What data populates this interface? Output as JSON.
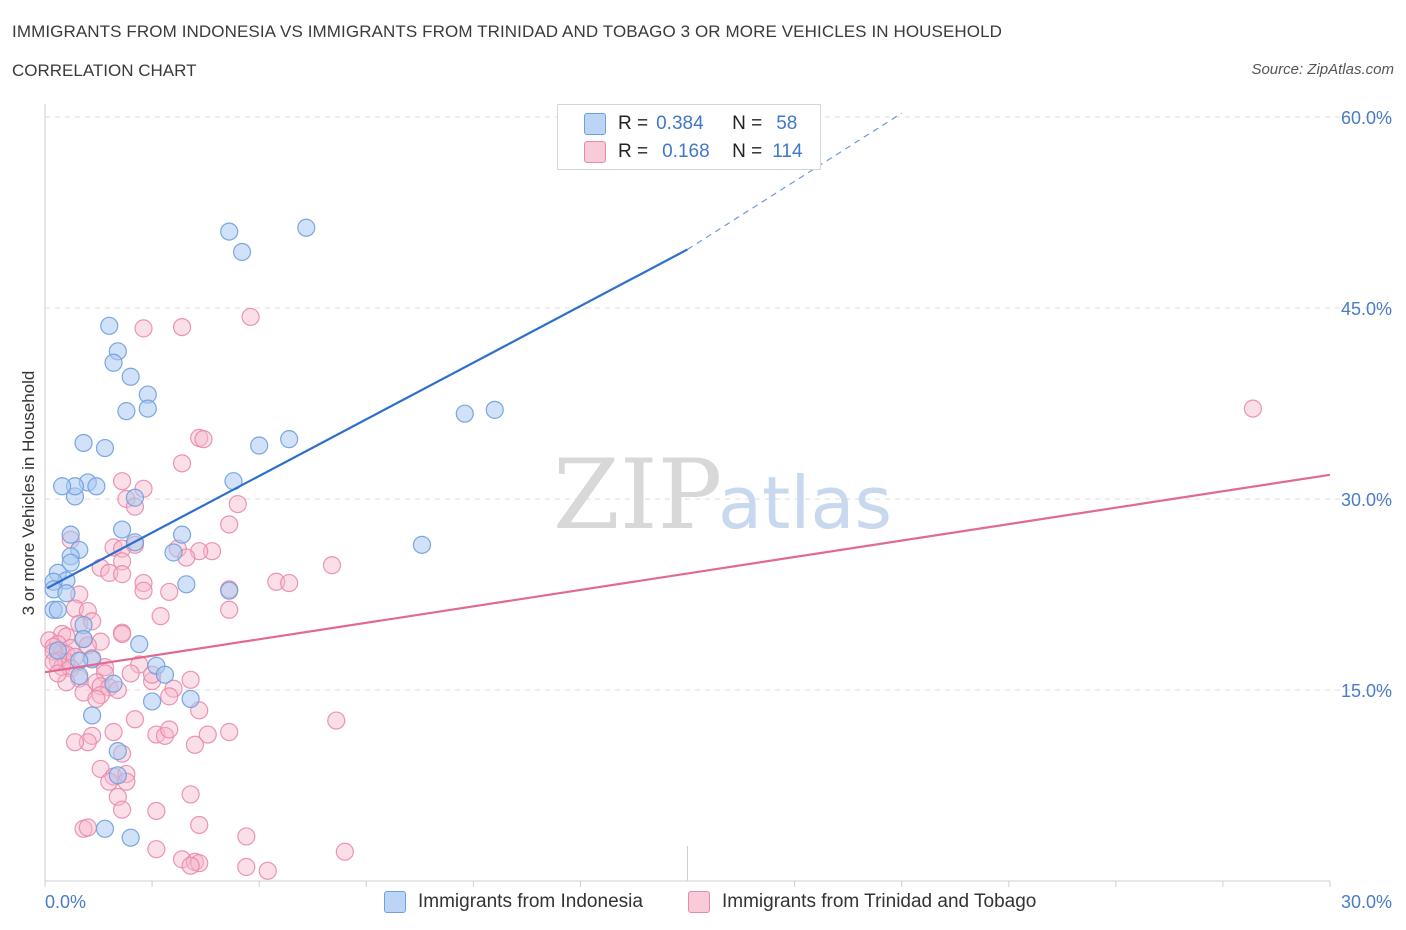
{
  "header": {
    "title": "IMMIGRANTS FROM INDONESIA VS IMMIGRANTS FROM TRINIDAD AND TOBAGO 3 OR MORE VEHICLES IN HOUSEHOLD",
    "subtitle": "CORRELATION CHART",
    "source": "Source: ZipAtlas.com"
  },
  "colors": {
    "blue_fill": "#a9c8f2",
    "blue_stroke": "#6f9fdc",
    "blue_line": "#2e6fcc",
    "pink_fill": "#f6b8cb",
    "pink_stroke": "#e98aa8",
    "pink_line": "#e06a92",
    "axis_text": "#4a7cc7",
    "grid": "#dcdcdc"
  },
  "legend": {
    "rows": [
      {
        "r_label": "R =",
        "r_value": "0.384",
        "n_label": "N =",
        "n_value": "58",
        "series": "blue"
      },
      {
        "r_label": "R =",
        "r_value": "0.168",
        "n_label": "N =",
        "n_value": "114",
        "series": "pink"
      }
    ]
  },
  "bottom_legend": {
    "items": [
      {
        "label": "Immigrants from Indonesia",
        "series": "blue"
      },
      {
        "label": "Immigrants from Trinidad and Tobago",
        "series": "pink"
      }
    ]
  },
  "watermark": {
    "zip": "ZIP",
    "atlas": "atlas"
  },
  "chart_data": {
    "type": "scatter",
    "title": "IMMIGRANTS FROM INDONESIA VS IMMIGRANTS FROM TRINIDAD AND TOBAGO 3 OR MORE VEHICLES IN HOUSEHOLD",
    "xlabel": "",
    "ylabel": "3 or more Vehicles in Household",
    "xlim": [
      0,
      30
    ],
    "ylim": [
      0,
      60
    ],
    "x_tick_labels": [
      "0.0%",
      "30.0%"
    ],
    "y_ticks": [
      15,
      30,
      45,
      60
    ],
    "y_tick_labels": [
      "15.0%",
      "30.0%",
      "45.0%",
      "60.0%"
    ],
    "grid": true,
    "series": [
      {
        "name": "Immigrants from Indonesia",
        "color": "blue",
        "R": 0.384,
        "N": 58,
        "trend": {
          "x0": 0.05,
          "y0": 23.0,
          "x1": 15.0,
          "y1": 49.6,
          "dash_to_x": 20.0,
          "dash_to_y": 60.3
        },
        "points": [
          [
            4.3,
            51.0
          ],
          [
            6.1,
            51.3
          ],
          [
            4.6,
            49.4
          ],
          [
            1.5,
            43.6
          ],
          [
            1.7,
            41.6
          ],
          [
            1.6,
            40.7
          ],
          [
            2.0,
            39.6
          ],
          [
            2.4,
            38.2
          ],
          [
            2.4,
            37.1
          ],
          [
            1.9,
            36.9
          ],
          [
            0.9,
            34.4
          ],
          [
            1.4,
            34.0
          ],
          [
            2.1,
            30.1
          ],
          [
            5.0,
            34.2
          ],
          [
            5.7,
            34.7
          ],
          [
            9.8,
            36.7
          ],
          [
            10.5,
            37.0
          ],
          [
            8.8,
            26.4
          ],
          [
            1.0,
            31.3
          ],
          [
            1.2,
            31.0
          ],
          [
            0.7,
            30.2
          ],
          [
            0.7,
            31.0
          ],
          [
            0.4,
            31.0
          ],
          [
            4.4,
            31.4
          ],
          [
            1.8,
            27.6
          ],
          [
            0.6,
            27.2
          ],
          [
            0.8,
            26.0
          ],
          [
            2.1,
            26.6
          ],
          [
            3.2,
            27.2
          ],
          [
            3.0,
            25.8
          ],
          [
            0.6,
            25.5
          ],
          [
            0.6,
            25.0
          ],
          [
            0.3,
            24.2
          ],
          [
            0.5,
            23.6
          ],
          [
            0.2,
            23.5
          ],
          [
            0.2,
            22.9
          ],
          [
            0.5,
            22.6
          ],
          [
            3.3,
            23.3
          ],
          [
            4.3,
            22.8
          ],
          [
            0.2,
            21.3
          ],
          [
            0.3,
            21.3
          ],
          [
            0.9,
            20.1
          ],
          [
            0.9,
            19.0
          ],
          [
            2.2,
            18.6
          ],
          [
            1.1,
            17.4
          ],
          [
            0.8,
            17.3
          ],
          [
            2.6,
            16.9
          ],
          [
            2.8,
            16.2
          ],
          [
            0.8,
            16.1
          ],
          [
            1.6,
            15.5
          ],
          [
            2.5,
            14.1
          ],
          [
            3.4,
            14.3
          ],
          [
            1.1,
            13.0
          ],
          [
            1.7,
            10.2
          ],
          [
            1.7,
            8.3
          ],
          [
            1.4,
            4.1
          ],
          [
            2.0,
            3.4
          ],
          [
            0.3,
            18.1
          ]
        ]
      },
      {
        "name": "Immigrants from Trinidad and Tobago",
        "color": "pink",
        "R": 0.168,
        "N": 114,
        "trend": {
          "x0": 0.0,
          "y0": 16.4,
          "x1": 30.0,
          "y1": 31.9
        },
        "points": [
          [
            4.8,
            44.3
          ],
          [
            2.3,
            43.4
          ],
          [
            3.2,
            43.5
          ],
          [
            28.2,
            37.1
          ],
          [
            3.6,
            34.8
          ],
          [
            3.7,
            34.7
          ],
          [
            3.2,
            32.8
          ],
          [
            1.8,
            31.4
          ],
          [
            2.3,
            30.8
          ],
          [
            1.9,
            30.0
          ],
          [
            4.5,
            29.6
          ],
          [
            2.1,
            29.4
          ],
          [
            4.3,
            28.0
          ],
          [
            1.6,
            26.2
          ],
          [
            1.8,
            26.1
          ],
          [
            2.1,
            26.4
          ],
          [
            3.1,
            26.1
          ],
          [
            3.9,
            25.9
          ],
          [
            3.6,
            25.9
          ],
          [
            0.6,
            26.8
          ],
          [
            3.3,
            25.4
          ],
          [
            1.8,
            25.1
          ],
          [
            1.3,
            24.6
          ],
          [
            6.7,
            24.8
          ],
          [
            1.5,
            24.2
          ],
          [
            1.8,
            24.1
          ],
          [
            5.4,
            23.5
          ],
          [
            5.7,
            23.4
          ],
          [
            2.3,
            23.4
          ],
          [
            2.3,
            22.8
          ],
          [
            2.9,
            22.7
          ],
          [
            0.8,
            22.5
          ],
          [
            4.3,
            22.9
          ],
          [
            4.3,
            21.3
          ],
          [
            0.7,
            21.4
          ],
          [
            1.0,
            21.2
          ],
          [
            2.7,
            20.8
          ],
          [
            0.8,
            20.2
          ],
          [
            1.1,
            20.4
          ],
          [
            1.8,
            19.5
          ],
          [
            0.4,
            19.4
          ],
          [
            0.1,
            18.9
          ],
          [
            0.5,
            19.2
          ],
          [
            0.9,
            19.0
          ],
          [
            0.3,
            18.6
          ],
          [
            0.6,
            18.3
          ],
          [
            0.2,
            18.4
          ],
          [
            0.4,
            17.9
          ],
          [
            0.5,
            17.8
          ],
          [
            1.3,
            18.8
          ],
          [
            1.8,
            19.4
          ],
          [
            1.0,
            18.5
          ],
          [
            0.2,
            18.0
          ],
          [
            0.3,
            17.3
          ],
          [
            0.5,
            17.2
          ],
          [
            0.7,
            17.6
          ],
          [
            0.4,
            16.8
          ],
          [
            0.6,
            16.7
          ],
          [
            1.4,
            16.8
          ],
          [
            2.2,
            17.0
          ],
          [
            1.4,
            16.3
          ],
          [
            0.8,
            15.9
          ],
          [
            1.2,
            15.6
          ],
          [
            1.3,
            15.3
          ],
          [
            1.5,
            15.2
          ],
          [
            1.7,
            15.0
          ],
          [
            0.5,
            15.6
          ],
          [
            0.9,
            14.8
          ],
          [
            1.3,
            14.6
          ],
          [
            2.5,
            15.7
          ],
          [
            3.4,
            15.8
          ],
          [
            3.0,
            15.1
          ],
          [
            2.9,
            14.5
          ],
          [
            1.2,
            14.3
          ],
          [
            3.6,
            13.4
          ],
          [
            2.1,
            12.7
          ],
          [
            6.8,
            12.6
          ],
          [
            1.6,
            11.7
          ],
          [
            1.1,
            11.4
          ],
          [
            2.6,
            11.5
          ],
          [
            2.8,
            11.4
          ],
          [
            2.9,
            11.9
          ],
          [
            3.8,
            11.5
          ],
          [
            4.3,
            11.7
          ],
          [
            1.0,
            10.9
          ],
          [
            0.7,
            10.9
          ],
          [
            1.8,
            10.0
          ],
          [
            3.5,
            10.7
          ],
          [
            1.3,
            8.8
          ],
          [
            1.6,
            8.2
          ],
          [
            1.9,
            8.4
          ],
          [
            1.5,
            7.8
          ],
          [
            1.9,
            7.8
          ],
          [
            1.7,
            6.6
          ],
          [
            3.4,
            6.8
          ],
          [
            1.8,
            5.6
          ],
          [
            2.6,
            5.5
          ],
          [
            3.6,
            4.4
          ],
          [
            0.9,
            4.1
          ],
          [
            1.0,
            4.2
          ],
          [
            4.7,
            3.5
          ],
          [
            2.6,
            2.5
          ],
          [
            7.0,
            2.3
          ],
          [
            3.2,
            1.7
          ],
          [
            3.5,
            1.5
          ],
          [
            3.6,
            1.4
          ],
          [
            3.4,
            1.2
          ],
          [
            4.7,
            1.1
          ],
          [
            5.2,
            0.8
          ],
          [
            0.2,
            17.2
          ],
          [
            1.1,
            17.5
          ],
          [
            0.3,
            16.3
          ],
          [
            2.0,
            16.3
          ],
          [
            2.5,
            16.2
          ]
        ]
      }
    ]
  },
  "y_axis_title": "3 or more Vehicles in Household"
}
